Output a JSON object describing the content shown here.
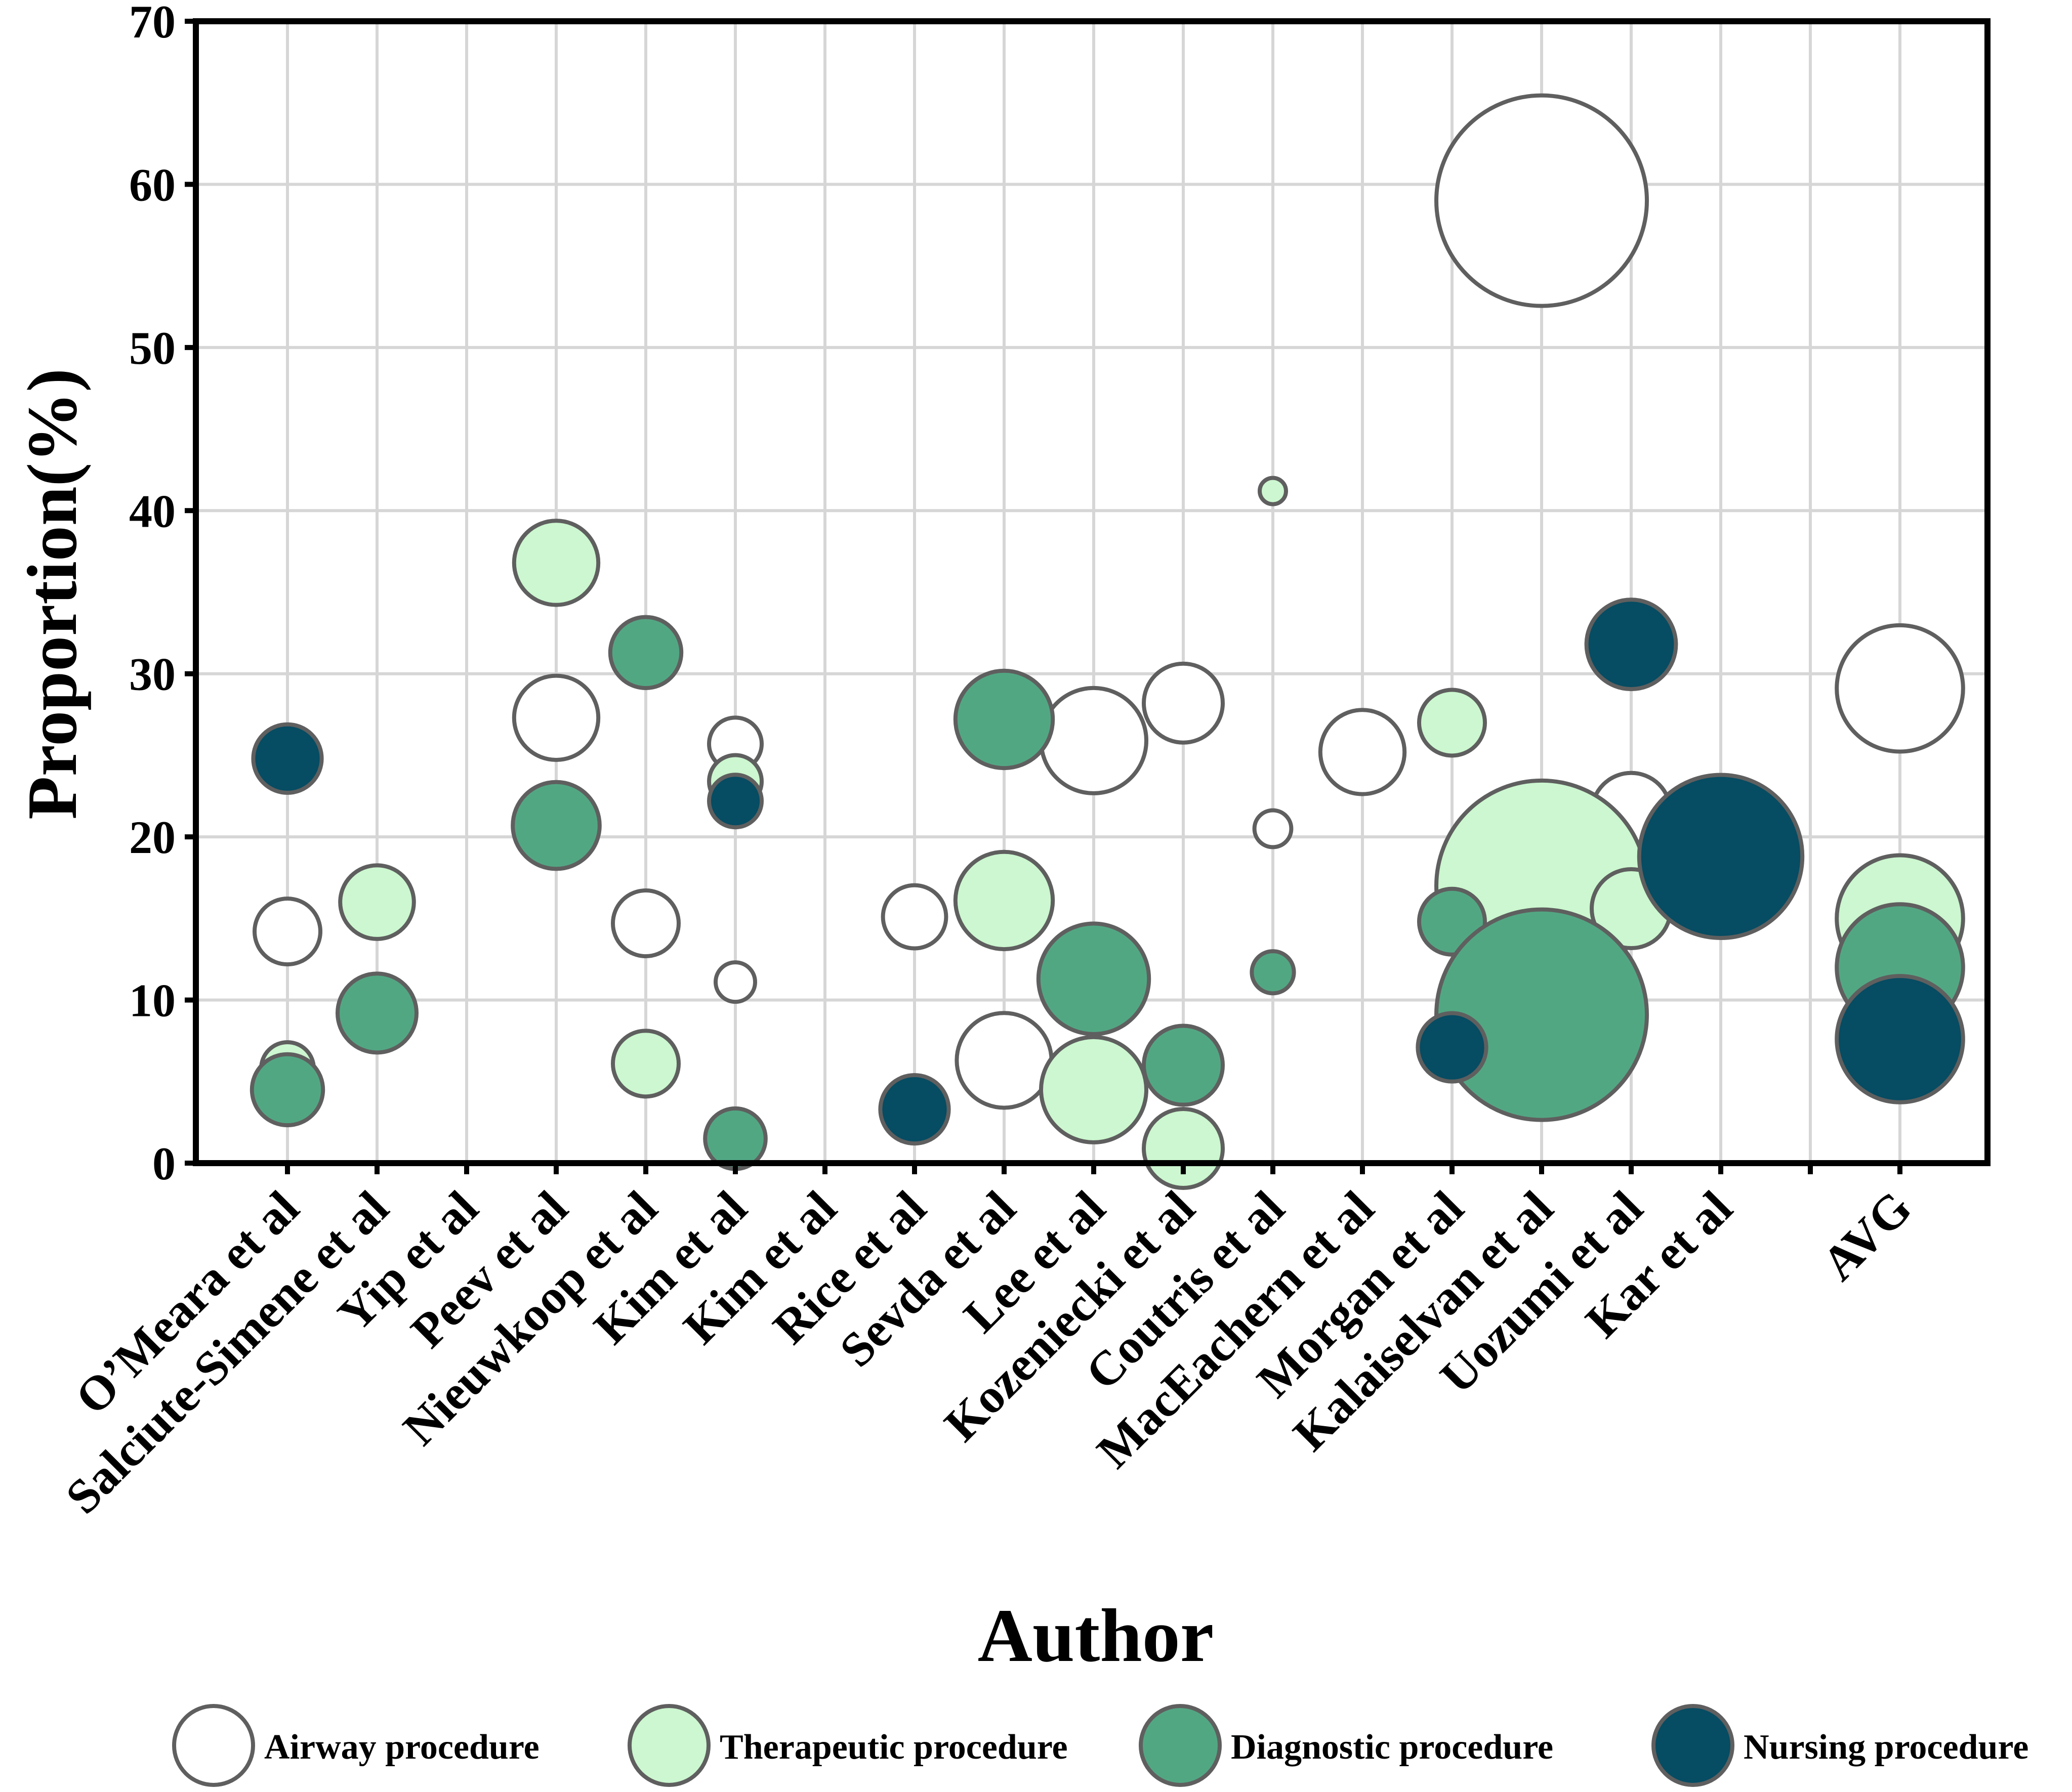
{
  "chart_data": {
    "type": "scatter",
    "subtype": "bubble",
    "title": "",
    "xlabel": "Author",
    "ylabel": "Proportion(%)",
    "ylim": [
      0,
      70
    ],
    "yticks": [
      0,
      10,
      20,
      30,
      40,
      50,
      60,
      70
    ],
    "grid": true,
    "legend_position": "bottom",
    "categories": [
      "O’Meara et al",
      "Salciute-Simene et al",
      "Yip et al",
      "Peev et al",
      "Nieuwkoop et al",
      "Kim et al",
      "Kim et al",
      "Rice et al",
      "Sevda et al",
      "Lee et al",
      "Kozeniecki et al",
      "Coutris et al",
      "MacEachern et al",
      "Morgan et al",
      "Kalaiselvan et al",
      "Uozumi et al",
      "Kar et al",
      "",
      "AVG"
    ],
    "series": [
      {
        "name": "Airway procedure",
        "color": "#ffffff",
        "points": [
          {
            "x": "O’Meara et al",
            "y": 14.2,
            "size": 0.25
          },
          {
            "x": "O’Meara et al",
            "y": 5.3,
            "size": 0.18
          },
          {
            "x": "Peev et al",
            "y": 27.3,
            "size": 0.32
          },
          {
            "x": "Nieuwkoop et al",
            "y": 14.7,
            "size": 0.25
          },
          {
            "x": "Kim et al",
            "y": 25.7,
            "size": 0.2
          },
          {
            "x": "Kim et al",
            "y": 11.1,
            "size": 0.15
          },
          {
            "x": "Rice et al",
            "y": 15.1,
            "size": 0.24
          },
          {
            "x": "Sevda et al",
            "y": 6.3,
            "size": 0.36
          },
          {
            "x": "Lee et al",
            "y": 25.9,
            "size": 0.4
          },
          {
            "x": "Kozeniecki et al",
            "y": 28.2,
            "size": 0.3
          },
          {
            "x": "Coutris et al",
            "y": 20.5,
            "size": 0.14
          },
          {
            "x": "MacEachern et al",
            "y": 25.2,
            "size": 0.32
          },
          {
            "x": "Kalaiselvan et al",
            "y": 59.0,
            "size": 0.8
          },
          {
            "x": "Uozumi et al",
            "y": 21.5,
            "size": 0.3
          },
          {
            "x": "AVG",
            "y": 29.1,
            "size": 0.48
          }
        ]
      },
      {
        "name": "Therapeutic procedure",
        "color": "#ccf7d0",
        "points": [
          {
            "x": "O’Meara et al",
            "y": 5.8,
            "size": 0.2
          },
          {
            "x": "Salciute-Simene et al",
            "y": 16.0,
            "size": 0.28
          },
          {
            "x": "Peev et al",
            "y": 36.8,
            "size": 0.32
          },
          {
            "x": "Nieuwkoop et al",
            "y": 6.1,
            "size": 0.25
          },
          {
            "x": "Kim et al",
            "y": 23.4,
            "size": 0.2
          },
          {
            "x": "Sevda et al",
            "y": 16.1,
            "size": 0.37
          },
          {
            "x": "Lee et al",
            "y": 4.5,
            "size": 0.4
          },
          {
            "x": "Kozeniecki et al",
            "y": 0.9,
            "size": 0.3
          },
          {
            "x": "Coutris et al",
            "y": 41.2,
            "size": 0.1
          },
          {
            "x": "Morgan et al",
            "y": 27.0,
            "size": 0.25
          },
          {
            "x": "Kalaiselvan et al",
            "y": 17.0,
            "size": 0.8
          },
          {
            "x": "Uozumi et al",
            "y": 15.6,
            "size": 0.3
          },
          {
            "x": "AVG",
            "y": 15.0,
            "size": 0.48
          }
        ]
      },
      {
        "name": "Diagnostic procedure",
        "color": "#52a783",
        "points": [
          {
            "x": "O’Meara et al",
            "y": 4.5,
            "size": 0.27
          },
          {
            "x": "Salciute-Simene et al",
            "y": 9.2,
            "size": 0.3
          },
          {
            "x": "Peev et al",
            "y": 20.7,
            "size": 0.33
          },
          {
            "x": "Nieuwkoop et al",
            "y": 31.3,
            "size": 0.27
          },
          {
            "x": "Kim et al",
            "y": 1.5,
            "size": 0.23
          },
          {
            "x": "Sevda et al",
            "y": 27.2,
            "size": 0.37
          },
          {
            "x": "Lee et al",
            "y": 11.3,
            "size": 0.42
          },
          {
            "x": "Kozeniecki et al",
            "y": 6.0,
            "size": 0.3
          },
          {
            "x": "Coutris et al",
            "y": 11.7,
            "size": 0.16
          },
          {
            "x": "Morgan et al",
            "y": 14.8,
            "size": 0.25
          },
          {
            "x": "Kalaiselvan et al",
            "y": 9.1,
            "size": 0.8
          },
          {
            "x": "AVG",
            "y": 12.0,
            "size": 0.48
          }
        ]
      },
      {
        "name": "Nursing procedure",
        "color": "#064c62",
        "points": [
          {
            "x": "O’Meara et al",
            "y": 24.8,
            "size": 0.26
          },
          {
            "x": "Kim et al",
            "y": 22.2,
            "size": 0.2
          },
          {
            "x": "Rice et al",
            "y": 3.3,
            "size": 0.26
          },
          {
            "x": "Morgan et al",
            "y": 7.1,
            "size": 0.26
          },
          {
            "x": "Uozumi et al",
            "y": 31.8,
            "size": 0.34
          },
          {
            "x": "Kar et al",
            "y": 18.8,
            "size": 0.62
          },
          {
            "x": "AVG",
            "y": 7.6,
            "size": 0.48
          }
        ]
      }
    ]
  }
}
